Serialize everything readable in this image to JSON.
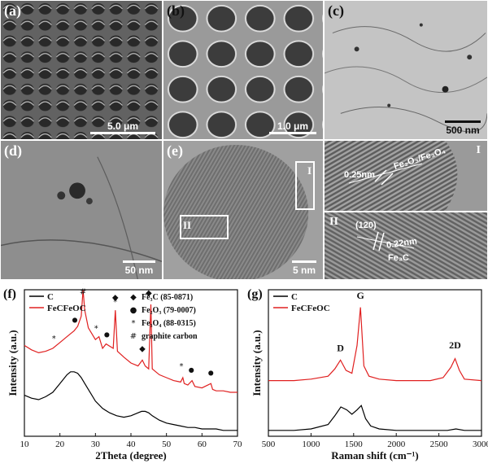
{
  "panels": {
    "a": {
      "label": "(a)",
      "scale": "5.0 μm"
    },
    "b": {
      "label": "(b)",
      "scale": "1.0 μm"
    },
    "c": {
      "label": "(c)",
      "scale": "500 nm"
    },
    "d": {
      "label": "(d)",
      "scale": "50 nm"
    },
    "e": {
      "label": "(e)",
      "scale": "5 nm",
      "box1": "I",
      "box2": "II"
    },
    "e1": {
      "tag": "I",
      "spacing": "0.25nm",
      "phase": "Fe₂O₃/Fe₃O₄"
    },
    "e2": {
      "tag": "II",
      "plane": "(120)",
      "spacing": "0.22nm",
      "phase": "Fe₃C"
    }
  },
  "chart_data": [
    {
      "id": "f",
      "type": "line",
      "panel_label": "(f)",
      "xlabel": "2Theta (degree)",
      "ylabel": "Intensity (a.u.)",
      "xlim": [
        10,
        70
      ],
      "xticks": [
        10,
        20,
        30,
        40,
        50,
        60,
        70
      ],
      "series": [
        {
          "name": "C",
          "color": "#000000",
          "x": [
            10,
            12,
            14,
            16,
            18,
            20,
            22,
            23,
            24,
            25,
            26,
            27,
            28,
            30,
            32,
            34,
            36,
            38,
            40,
            42,
            43,
            44,
            45,
            46,
            48,
            50,
            52,
            54,
            56,
            58,
            60,
            62,
            64,
            66,
            68,
            70
          ],
          "y": [
            0.28,
            0.26,
            0.25,
            0.27,
            0.3,
            0.36,
            0.42,
            0.44,
            0.44,
            0.43,
            0.4,
            0.36,
            0.32,
            0.24,
            0.19,
            0.16,
            0.14,
            0.13,
            0.14,
            0.16,
            0.17,
            0.17,
            0.16,
            0.14,
            0.11,
            0.09,
            0.08,
            0.07,
            0.06,
            0.06,
            0.05,
            0.05,
            0.05,
            0.04,
            0.04,
            0.04
          ]
        },
        {
          "name": "FeCFeOC",
          "color": "#e02020",
          "x": [
            10,
            12,
            14,
            16,
            18,
            20,
            22,
            24,
            25,
            26,
            26.5,
            27,
            28,
            30,
            31,
            32,
            33,
            35,
            35.6,
            36.2,
            38,
            40,
            42,
            43.2,
            44,
            45,
            45.6,
            46,
            48,
            50,
            52,
            54,
            54.6,
            55,
            56,
            57.2,
            58,
            60,
            62.5,
            63,
            64,
            66,
            68,
            70
          ],
          "y": [
            0.62,
            0.59,
            0.57,
            0.58,
            0.6,
            0.64,
            0.68,
            0.72,
            0.75,
            0.82,
            1.0,
            0.86,
            0.74,
            0.66,
            0.68,
            0.6,
            0.63,
            0.6,
            0.86,
            0.58,
            0.54,
            0.5,
            0.48,
            0.52,
            0.48,
            0.46,
            0.9,
            0.46,
            0.42,
            0.4,
            0.38,
            0.37,
            0.4,
            0.36,
            0.35,
            0.38,
            0.34,
            0.33,
            0.36,
            0.32,
            0.31,
            0.31,
            0.3,
            0.3
          ]
        }
      ],
      "markers": [
        {
          "x": 18.3,
          "y": 0.65,
          "symbol": "*"
        },
        {
          "x": 24.2,
          "y": 0.78,
          "symbol": "●"
        },
        {
          "x": 26.5,
          "y": 1.05,
          "symbol": "◆"
        },
        {
          "x": 26.5,
          "y": 0.97,
          "symbol": "#"
        },
        {
          "x": 30.2,
          "y": 0.72,
          "symbol": "*"
        },
        {
          "x": 33.2,
          "y": 0.68,
          "symbol": "●"
        },
        {
          "x": 35.6,
          "y": 0.93,
          "symbol": "◆"
        },
        {
          "x": 35.6,
          "y": 0.9,
          "symbol": "*"
        },
        {
          "x": 43.2,
          "y": 0.58,
          "symbol": "◆"
        },
        {
          "x": 45.0,
          "y": 0.96,
          "symbol": "◆"
        },
        {
          "x": 54.2,
          "y": 0.46,
          "symbol": "*"
        },
        {
          "x": 57.0,
          "y": 0.44,
          "symbol": "●"
        },
        {
          "x": 62.5,
          "y": 0.42,
          "symbol": "●"
        }
      ],
      "legend": [
        "C",
        "FeCFeOC"
      ],
      "phase_legend": [
        {
          "symbol": "◆",
          "text": "Fe₃C (85-0871)"
        },
        {
          "symbol": "●",
          "text": "Fe₂O₃ (79-0007)"
        },
        {
          "symbol": "*",
          "text": "Fe₃O₄ (88-0315)"
        },
        {
          "symbol": "#",
          "text": "graphite carbon"
        }
      ]
    },
    {
      "id": "g",
      "type": "line",
      "panel_label": "(g)",
      "xlabel": "Raman shift (cm⁻¹)",
      "ylabel": "Intensity (a.u.)",
      "xlim": [
        500,
        3000
      ],
      "xticks": [
        500,
        1000,
        1500,
        2000,
        2500,
        3000
      ],
      "series": [
        {
          "name": "C",
          "color": "#000000",
          "x": [
            500,
            800,
            1000,
            1200,
            1280,
            1350,
            1420,
            1480,
            1540,
            1590,
            1640,
            1700,
            1800,
            2000,
            2200,
            2400,
            2600,
            2700,
            2800,
            3000
          ],
          "y": [
            0.04,
            0.04,
            0.05,
            0.08,
            0.14,
            0.2,
            0.18,
            0.15,
            0.18,
            0.21,
            0.12,
            0.07,
            0.05,
            0.04,
            0.04,
            0.04,
            0.04,
            0.05,
            0.04,
            0.04
          ]
        },
        {
          "name": "FeCFeOC",
          "color": "#e02020",
          "x": [
            500,
            800,
            1000,
            1200,
            1280,
            1345,
            1410,
            1480,
            1540,
            1580,
            1620,
            1680,
            1800,
            2000,
            2200,
            2400,
            2550,
            2640,
            2690,
            2740,
            2800,
            3000
          ],
          "y": [
            0.38,
            0.38,
            0.39,
            0.41,
            0.46,
            0.52,
            0.45,
            0.43,
            0.62,
            0.88,
            0.48,
            0.41,
            0.39,
            0.38,
            0.38,
            0.38,
            0.4,
            0.47,
            0.53,
            0.45,
            0.39,
            0.38
          ]
        }
      ],
      "peak_labels": [
        {
          "text": "D",
          "x": 1345,
          "y": 0.58
        },
        {
          "text": "G",
          "x": 1580,
          "y": 0.94
        },
        {
          "text": "2D",
          "x": 2690,
          "y": 0.6
        }
      ],
      "legend": [
        "C",
        "FeCFeOC"
      ]
    }
  ]
}
